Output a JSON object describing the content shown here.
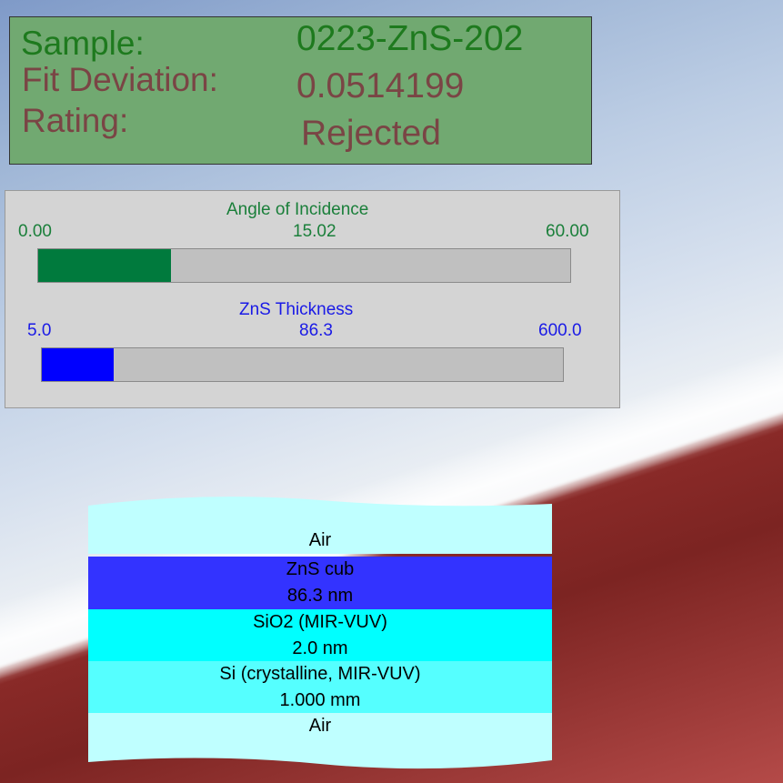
{
  "info": {
    "sample_label": "Sample:",
    "sample_value": "0223-ZnS-202",
    "fit_label": "Fit Deviation:",
    "fit_value": "0.0514199",
    "rating_label": "Rating:",
    "rating_value": "Rejected"
  },
  "sliders": {
    "angle": {
      "title": "Angle of Incidence",
      "min": "0.00",
      "value": "15.02",
      "max": "60.00",
      "fraction": 0.25,
      "color": "#007a3d"
    },
    "thickness": {
      "title": "ZnS Thickness",
      "min": "5.0",
      "value": "86.3",
      "max": "600.0",
      "fraction": 0.137,
      "color": "#0000ff"
    }
  },
  "layers": {
    "top_air": {
      "name": "Air",
      "color": "#bfffff"
    },
    "zns": {
      "name": "ZnS cub",
      "thickness": "86.3 nm",
      "color": "#3333ff"
    },
    "sio2": {
      "name": "SiO2 (MIR-VUV)",
      "thickness": "2.0 nm",
      "color": "#00ffff"
    },
    "si": {
      "name": "Si (crystalline, MIR-VUV)",
      "thickness": "1.000 mm",
      "color": "#55ffff"
    },
    "bottom_air": {
      "name": "Air",
      "color": "#bfffff"
    }
  }
}
